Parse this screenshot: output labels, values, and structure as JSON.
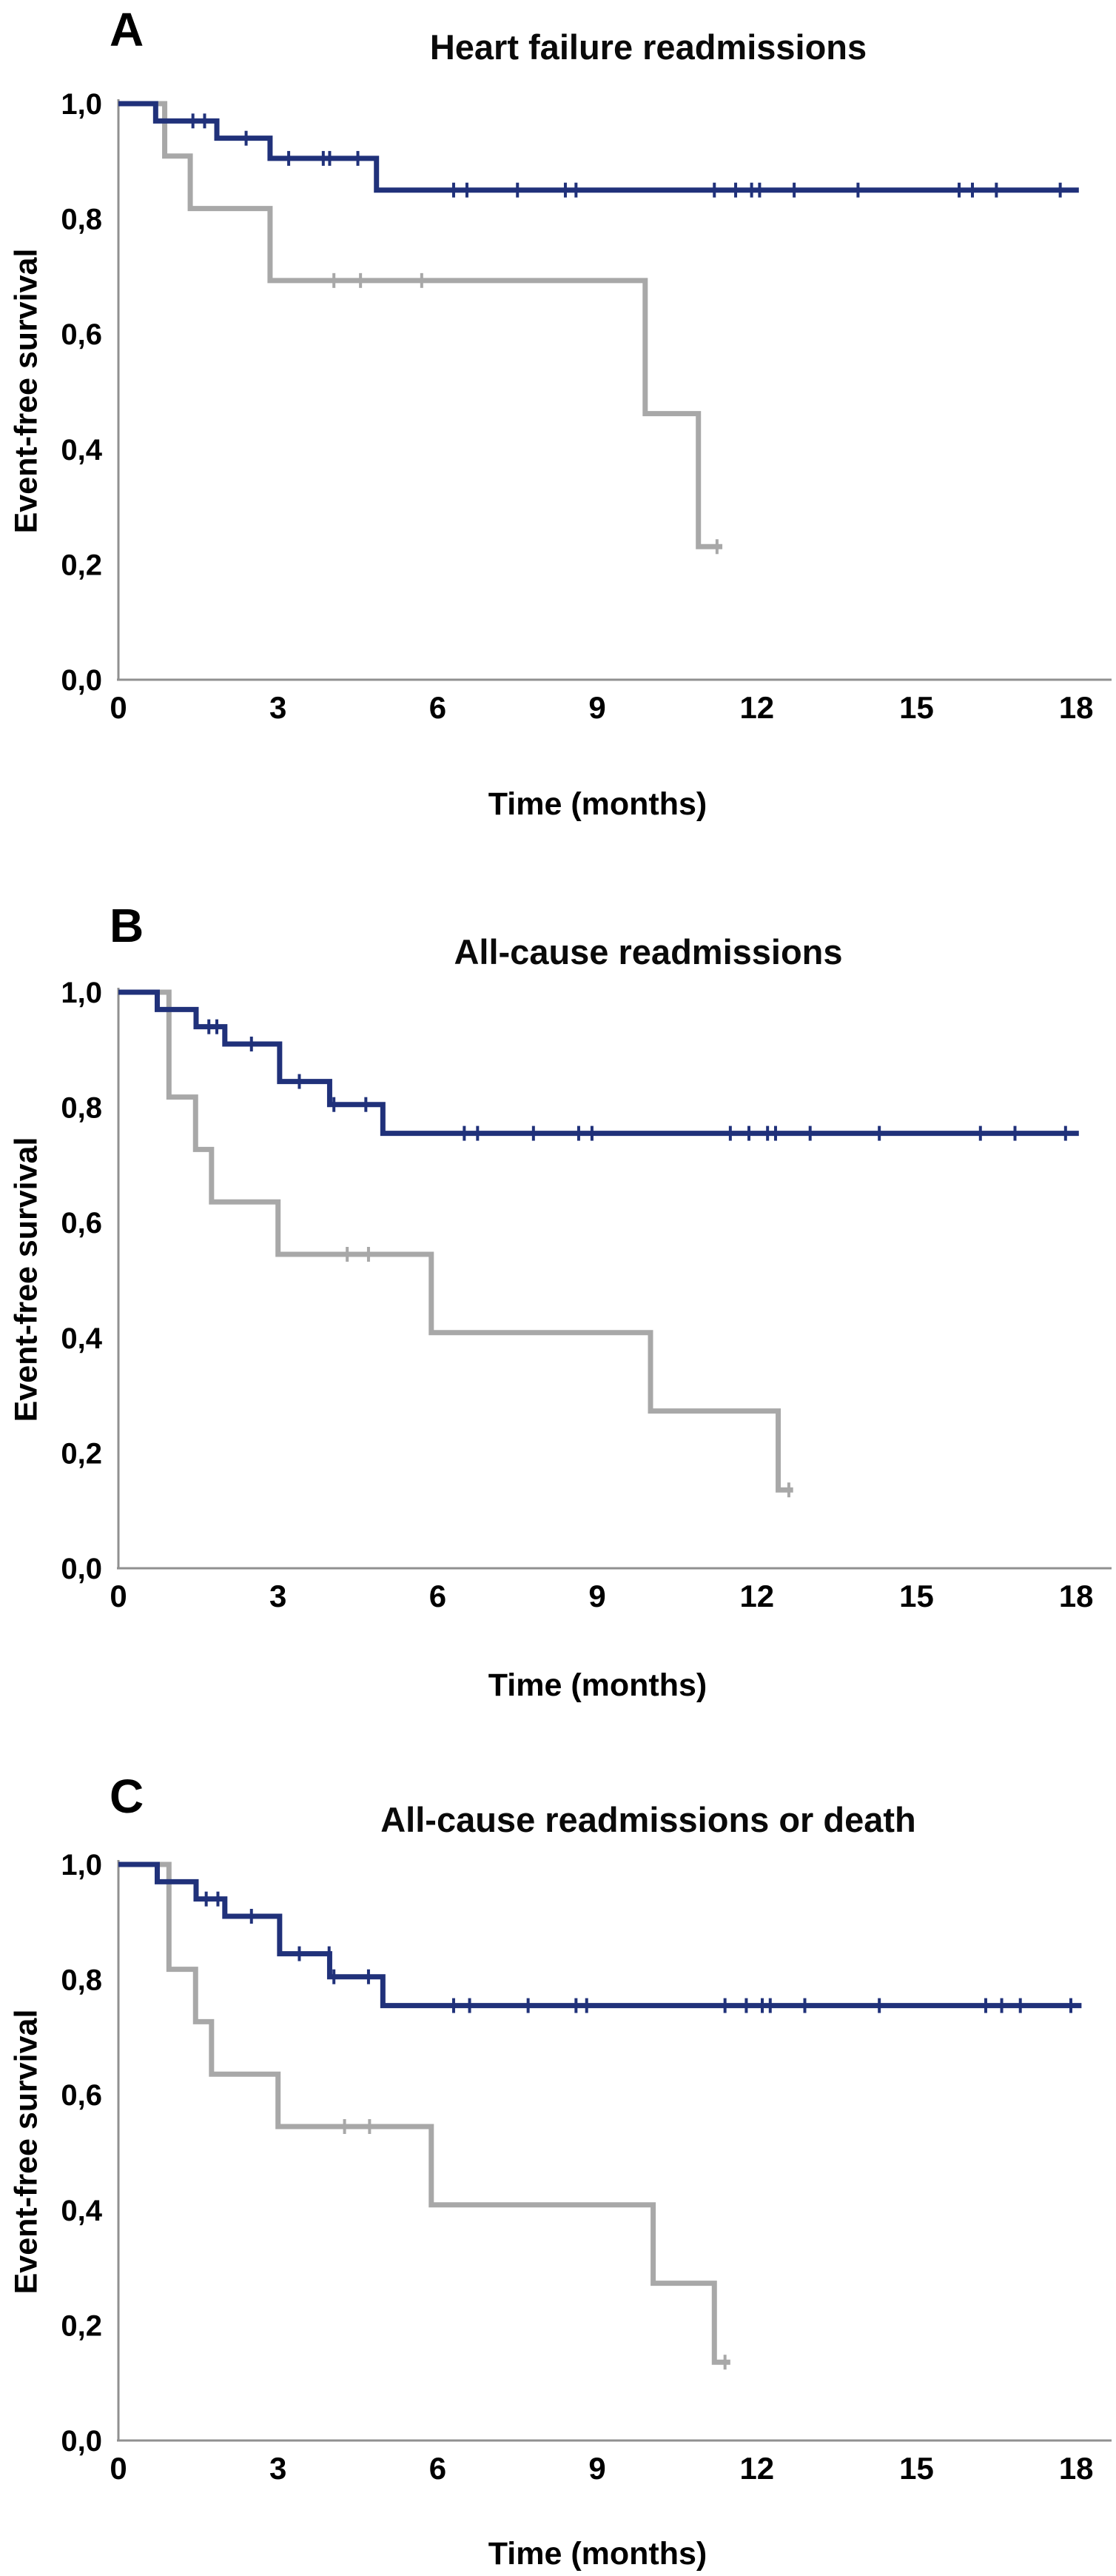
{
  "figure": {
    "background": "#ffffff",
    "text_color": "#000000",
    "axis_color": "#909090"
  },
  "chart_data": [
    {
      "type": "line",
      "subtype": "kaplan-meier-step",
      "panel": "A",
      "title": "Heart failure readmissions",
      "xlabel": "Time (months)",
      "ylabel": "Event-free survival",
      "xlim": [
        0,
        18
      ],
      "ylim": [
        0.0,
        1.0
      ],
      "xticks": [
        0,
        3,
        6,
        9,
        12,
        15,
        18
      ],
      "ytick_labels": [
        "0,0",
        "0,2",
        "0,4",
        "0,6",
        "0,8",
        "1,0"
      ],
      "ytick_values": [
        0.0,
        0.2,
        0.4,
        0.6,
        0.8,
        1.0
      ],
      "grid": false,
      "legend": "none",
      "series": [
        {
          "id": "navy-group",
          "color": "#20317a",
          "steps": [
            [
              0,
              1.0
            ],
            [
              0.7,
              0.97
            ],
            [
              1.85,
              0.94
            ],
            [
              2.85,
              0.905
            ],
            [
              4.85,
              0.85
            ],
            [
              18.05,
              0.85
            ]
          ],
          "censor_marks": [
            [
              1.4,
              0.97
            ],
            [
              1.62,
              0.97
            ],
            [
              2.4,
              0.94
            ],
            [
              3.2,
              0.905
            ],
            [
              3.85,
              0.905
            ],
            [
              3.97,
              0.905
            ],
            [
              4.5,
              0.905
            ],
            [
              6.3,
              0.85
            ],
            [
              6.55,
              0.85
            ],
            [
              7.5,
              0.85
            ],
            [
              8.4,
              0.85
            ],
            [
              8.6,
              0.85
            ],
            [
              11.2,
              0.85
            ],
            [
              11.6,
              0.85
            ],
            [
              11.9,
              0.85
            ],
            [
              12.05,
              0.85
            ],
            [
              12.7,
              0.85
            ],
            [
              13.9,
              0.85
            ],
            [
              15.8,
              0.85
            ],
            [
              16.05,
              0.85
            ],
            [
              16.5,
              0.85
            ],
            [
              17.7,
              0.85
            ]
          ]
        },
        {
          "id": "grey-group",
          "color": "#a8a8a8",
          "steps": [
            [
              0,
              1.0
            ],
            [
              0.87,
              0.909
            ],
            [
              1.35,
              0.818
            ],
            [
              2.85,
              0.693
            ],
            [
              9.9,
              0.462
            ],
            [
              10.9,
              0.231
            ],
            [
              11.35,
              0.231
            ]
          ],
          "censor_marks": [
            [
              4.05,
              0.693
            ],
            [
              4.55,
              0.693
            ],
            [
              5.7,
              0.693
            ],
            [
              11.25,
              0.231
            ]
          ]
        }
      ]
    },
    {
      "type": "line",
      "subtype": "kaplan-meier-step",
      "panel": "B",
      "title": "All-cause readmissions",
      "xlabel": "Time (months)",
      "ylabel": "Event-free survival",
      "xlim": [
        0,
        18
      ],
      "ylim": [
        0.0,
        1.0
      ],
      "xticks": [
        0,
        3,
        6,
        9,
        12,
        15,
        18
      ],
      "ytick_labels": [
        "0,0",
        "0,2",
        "0,4",
        "0,6",
        "0,8",
        "1,0"
      ],
      "ytick_values": [
        0.0,
        0.2,
        0.4,
        0.6,
        0.8,
        1.0
      ],
      "grid": false,
      "legend": "none",
      "series": [
        {
          "id": "navy-group",
          "color": "#20317a",
          "steps": [
            [
              0,
              1.0
            ],
            [
              0.73,
              0.97
            ],
            [
              1.46,
              0.94
            ],
            [
              2.0,
              0.91
            ],
            [
              3.03,
              0.845
            ],
            [
              3.97,
              0.805
            ],
            [
              4.97,
              0.755
            ],
            [
              18.05,
              0.755
            ]
          ],
          "censor_marks": [
            [
              1.7,
              0.94
            ],
            [
              1.85,
              0.94
            ],
            [
              2.5,
              0.91
            ],
            [
              3.4,
              0.845
            ],
            [
              4.05,
              0.805
            ],
            [
              4.65,
              0.805
            ],
            [
              6.5,
              0.755
            ],
            [
              6.75,
              0.755
            ],
            [
              7.8,
              0.755
            ],
            [
              8.65,
              0.755
            ],
            [
              8.9,
              0.755
            ],
            [
              11.5,
              0.755
            ],
            [
              11.85,
              0.755
            ],
            [
              12.2,
              0.755
            ],
            [
              12.35,
              0.755
            ],
            [
              13.0,
              0.755
            ],
            [
              14.3,
              0.755
            ],
            [
              16.2,
              0.755
            ],
            [
              16.85,
              0.755
            ],
            [
              17.8,
              0.755
            ]
          ]
        },
        {
          "id": "grey-group",
          "color": "#a8a8a8",
          "steps": [
            [
              0,
              1.0
            ],
            [
              0.95,
              0.818
            ],
            [
              1.45,
              0.727
            ],
            [
              1.75,
              0.636
            ],
            [
              3.0,
              0.545
            ],
            [
              5.88,
              0.409
            ],
            [
              10.0,
              0.273
            ],
            [
              12.4,
              0.136
            ],
            [
              12.68,
              0.136
            ]
          ],
          "censor_marks": [
            [
              4.3,
              0.545
            ],
            [
              4.7,
              0.545
            ],
            [
              12.6,
              0.136
            ]
          ]
        }
      ]
    },
    {
      "type": "line",
      "subtype": "kaplan-meier-step",
      "panel": "C",
      "title": "All-cause readmissions or death",
      "xlabel": "Time (months)",
      "ylabel": "Event-free survival",
      "xlim": [
        0,
        18
      ],
      "ylim": [
        0.0,
        1.0
      ],
      "xticks": [
        0,
        3,
        6,
        9,
        12,
        15,
        18
      ],
      "ytick_labels": [
        "0,0",
        "0,2",
        "0,4",
        "0,6",
        "0,8",
        "1,0"
      ],
      "ytick_values": [
        0.0,
        0.2,
        0.4,
        0.6,
        0.8,
        1.0
      ],
      "grid": false,
      "legend": "none",
      "series": [
        {
          "id": "navy-group",
          "color": "#20317a",
          "steps": [
            [
              0,
              1.0
            ],
            [
              0.73,
              0.97
            ],
            [
              1.46,
              0.94
            ],
            [
              2.0,
              0.91
            ],
            [
              3.03,
              0.845
            ],
            [
              3.97,
              0.805
            ],
            [
              4.97,
              0.755
            ],
            [
              18.1,
              0.755
            ]
          ],
          "censor_marks": [
            [
              1.65,
              0.94
            ],
            [
              1.87,
              0.94
            ],
            [
              2.5,
              0.91
            ],
            [
              3.4,
              0.845
            ],
            [
              3.96,
              0.845
            ],
            [
              4.05,
              0.805
            ],
            [
              4.7,
              0.805
            ],
            [
              6.3,
              0.755
            ],
            [
              6.6,
              0.755
            ],
            [
              7.7,
              0.755
            ],
            [
              8.6,
              0.755
            ],
            [
              8.8,
              0.755
            ],
            [
              11.4,
              0.755
            ],
            [
              11.8,
              0.755
            ],
            [
              12.1,
              0.755
            ],
            [
              12.25,
              0.755
            ],
            [
              12.9,
              0.755
            ],
            [
              14.3,
              0.755
            ],
            [
              16.3,
              0.755
            ],
            [
              16.6,
              0.755
            ],
            [
              16.95,
              0.755
            ],
            [
              17.9,
              0.755
            ]
          ]
        },
        {
          "id": "grey-group",
          "color": "#a8a8a8",
          "steps": [
            [
              0,
              1.0
            ],
            [
              0.95,
              0.818
            ],
            [
              1.45,
              0.727
            ],
            [
              1.75,
              0.636
            ],
            [
              3.0,
              0.545
            ],
            [
              5.88,
              0.409
            ],
            [
              10.05,
              0.273
            ],
            [
              11.2,
              0.136
            ],
            [
              11.5,
              0.136
            ]
          ],
          "censor_marks": [
            [
              4.25,
              0.545
            ],
            [
              4.72,
              0.545
            ],
            [
              11.4,
              0.136
            ]
          ]
        }
      ]
    }
  ]
}
